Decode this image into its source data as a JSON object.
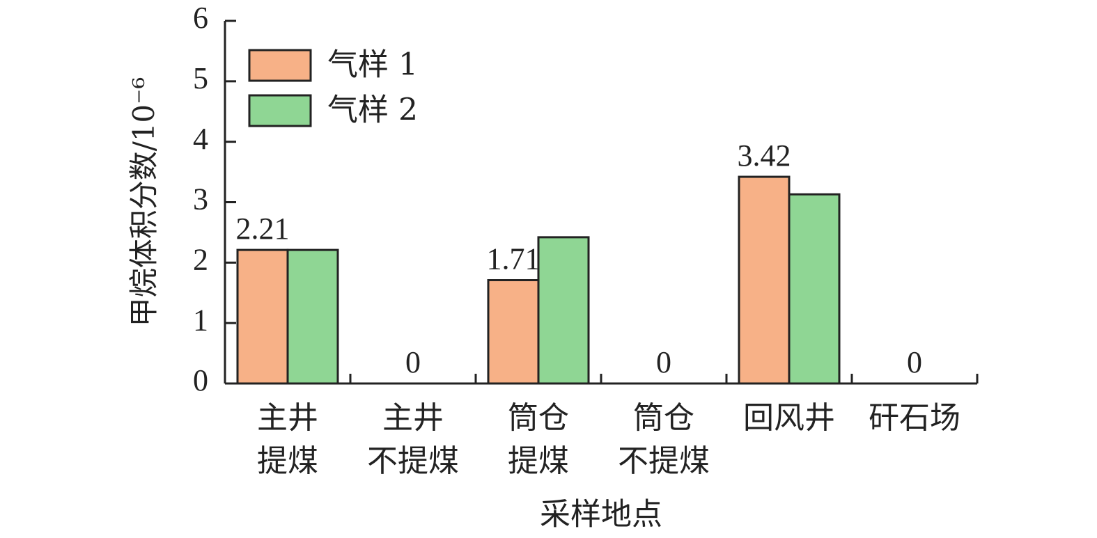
{
  "chart_data": {
    "type": "bar",
    "y_label": "甲烷体积分数/10⁻⁶",
    "x_label": "采样地点",
    "categories": [
      "主井\n提煤",
      "主井\n不提煤",
      "筒仓\n提煤",
      "筒仓\n不提煤",
      "回风井",
      "矸石场"
    ],
    "series": [
      {
        "name": "气样 1",
        "color": "#f7b187",
        "values": [
          2.21,
          0,
          1.71,
          0,
          3.42,
          0
        ],
        "show_value_labels": true
      },
      {
        "name": "气样 2",
        "color": "#8fd694",
        "values": [
          2.21,
          0,
          2.42,
          0,
          3.13,
          0
        ],
        "show_value_labels": false
      }
    ],
    "ylim": [
      0,
      6
    ],
    "yticks": [
      0,
      1,
      2,
      3,
      4,
      5,
      6
    ],
    "legend": "upper left"
  }
}
